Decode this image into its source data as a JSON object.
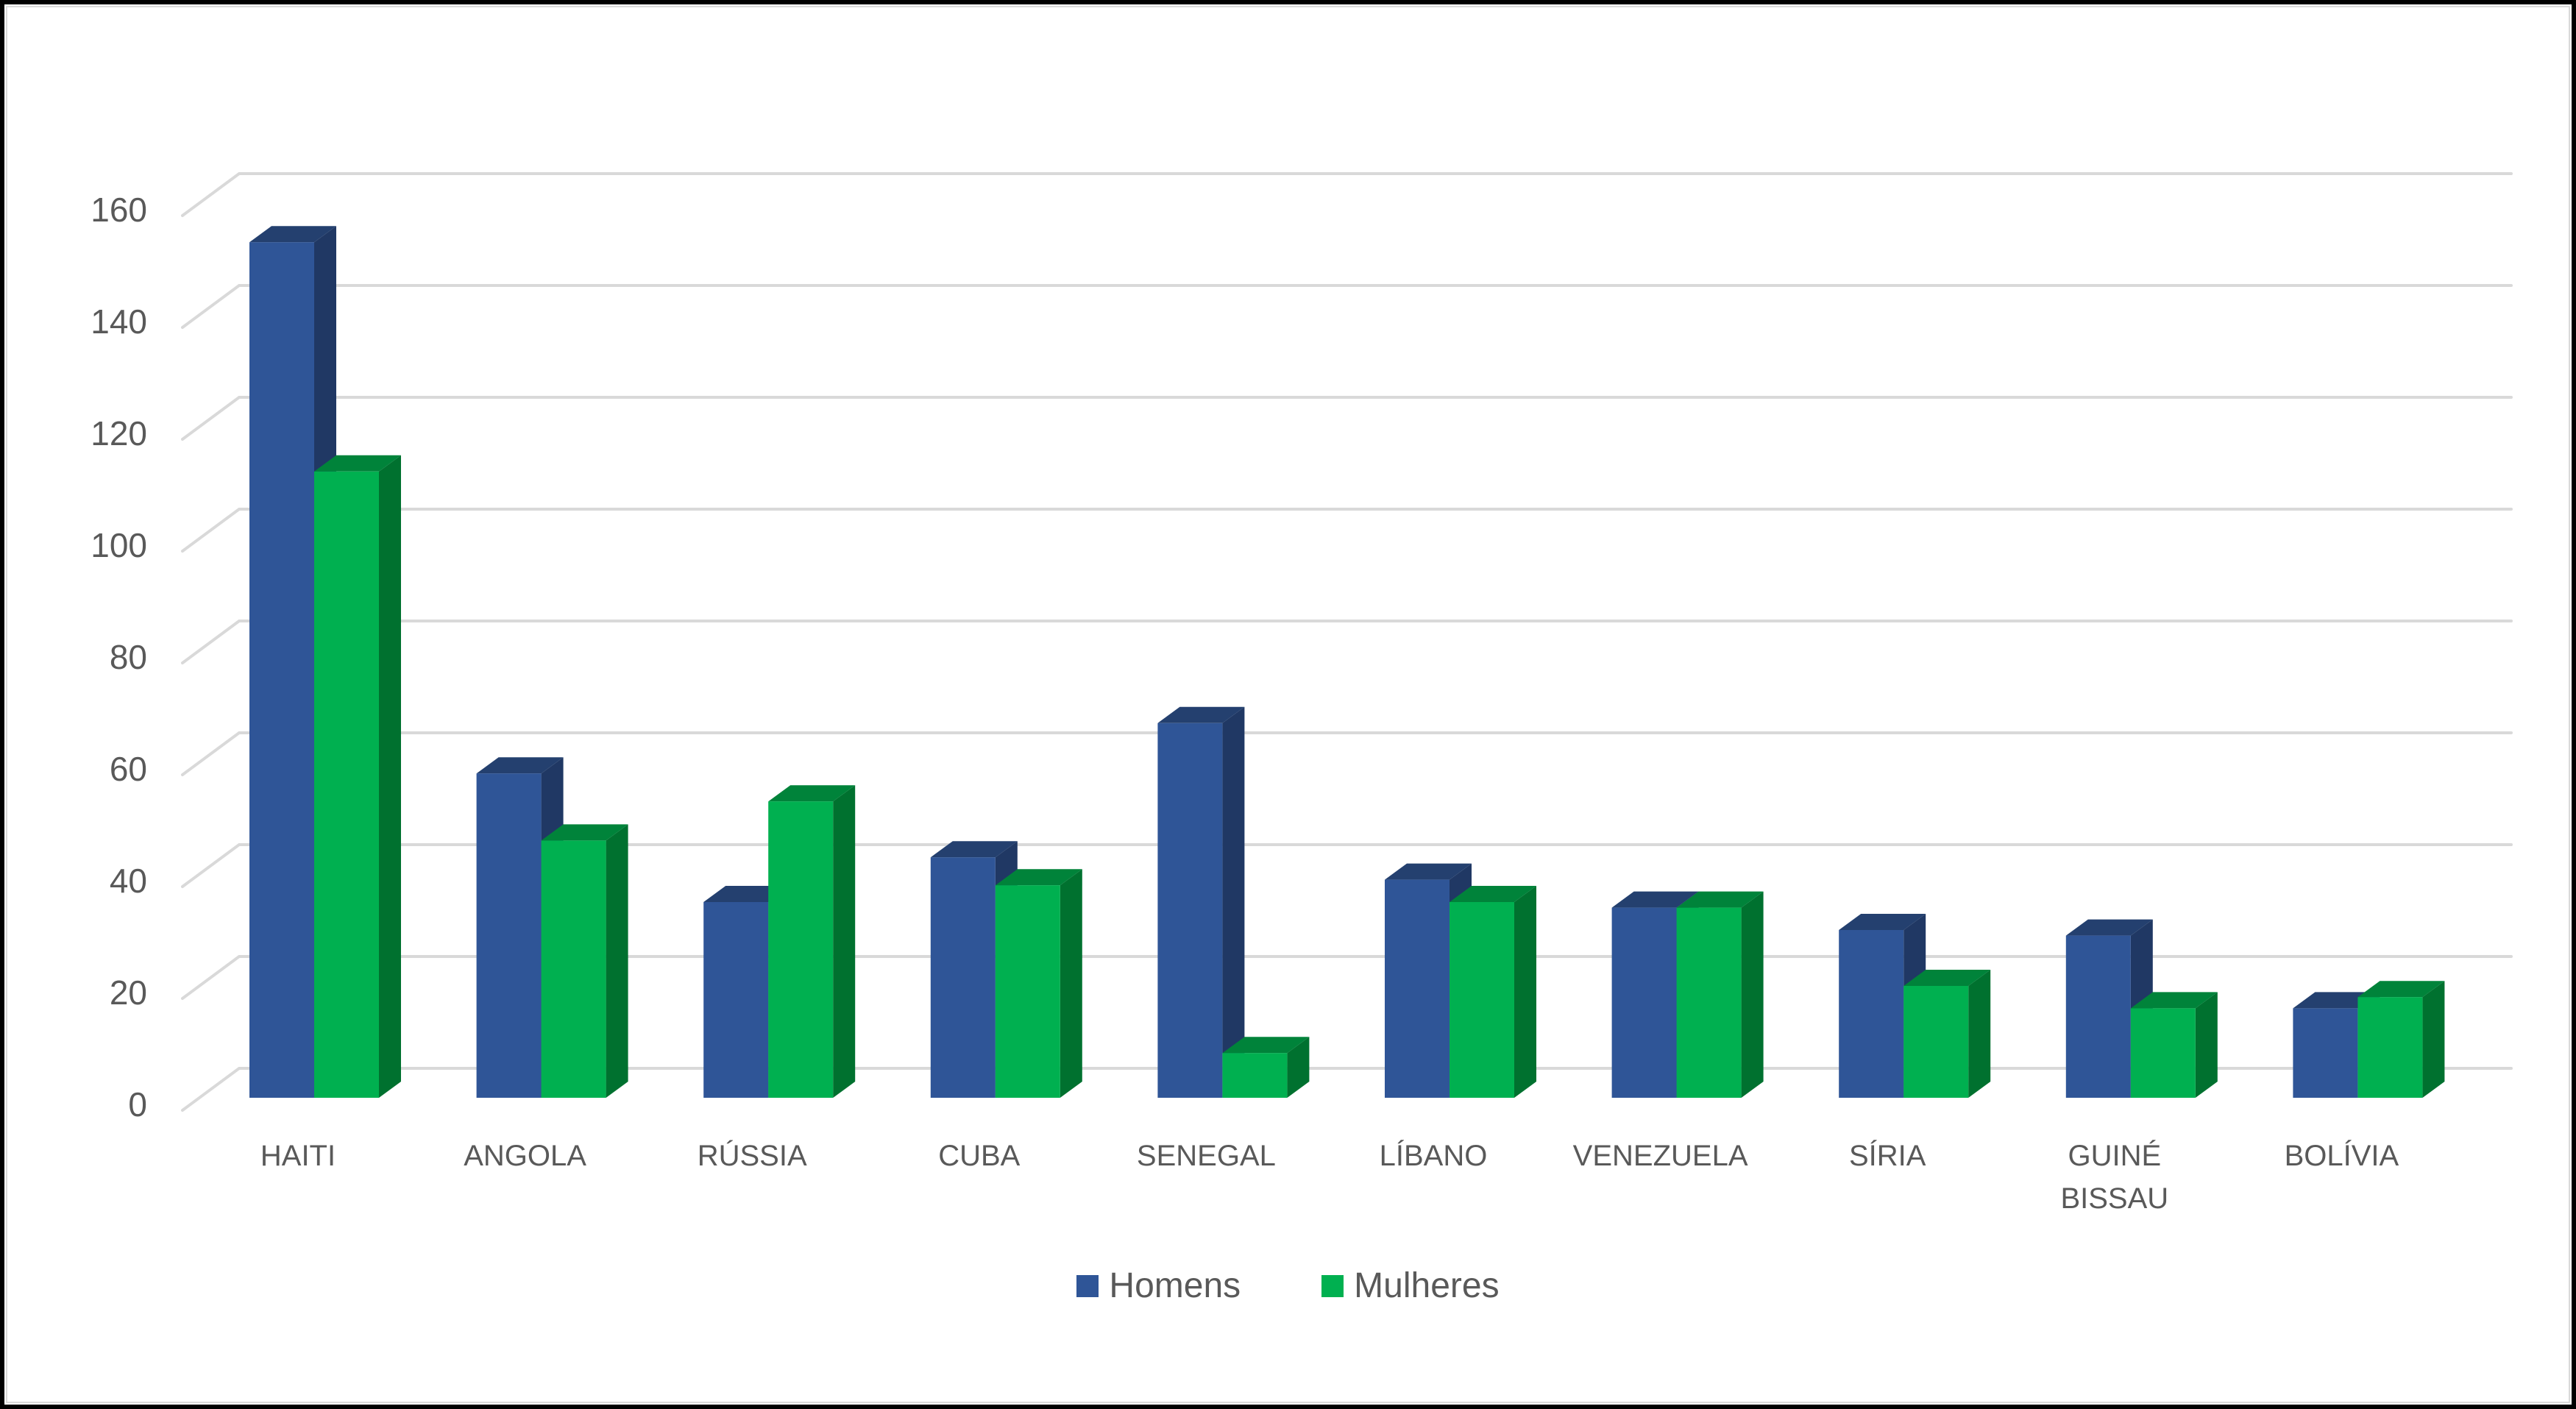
{
  "chart_data": {
    "type": "bar",
    "variant": "3d-clustered-column",
    "title": "",
    "xlabel": "",
    "ylabel": "",
    "ylim": [
      0,
      160
    ],
    "yticks": [
      0,
      20,
      40,
      60,
      80,
      100,
      120,
      140,
      160
    ],
    "grid": true,
    "legend_position": "bottom",
    "categories": [
      "HAITI",
      "ANGOLA",
      "RÚSSIA",
      "CUBA",
      "SENEGAL",
      "LÍBANO",
      "VENEZUELA",
      "SÍRIA",
      "GUINÉ\nBISSAU",
      "BOLÍVIA"
    ],
    "series": [
      {
        "name": "Homens",
        "color": "#2F5597",
        "values": [
          153,
          58,
          35,
          43,
          67,
          39,
          34,
          30,
          29,
          16
        ]
      },
      {
        "name": "Mulheres",
        "color": "#00B050",
        "values": [
          112,
          46,
          53,
          38,
          8,
          35,
          34,
          20,
          16,
          18
        ]
      }
    ]
  },
  "colors": {
    "homens_front": "#2F5597",
    "homens_side": "#203864",
    "homens_top": "#24406F",
    "mulheres_front": "#00B050",
    "mulheres_side": "#00712F",
    "mulheres_top": "#00833A",
    "grid": "#D9D9D9",
    "text": "#595959"
  },
  "legend": {
    "homens": "Homens",
    "mulheres": "Mulheres"
  }
}
